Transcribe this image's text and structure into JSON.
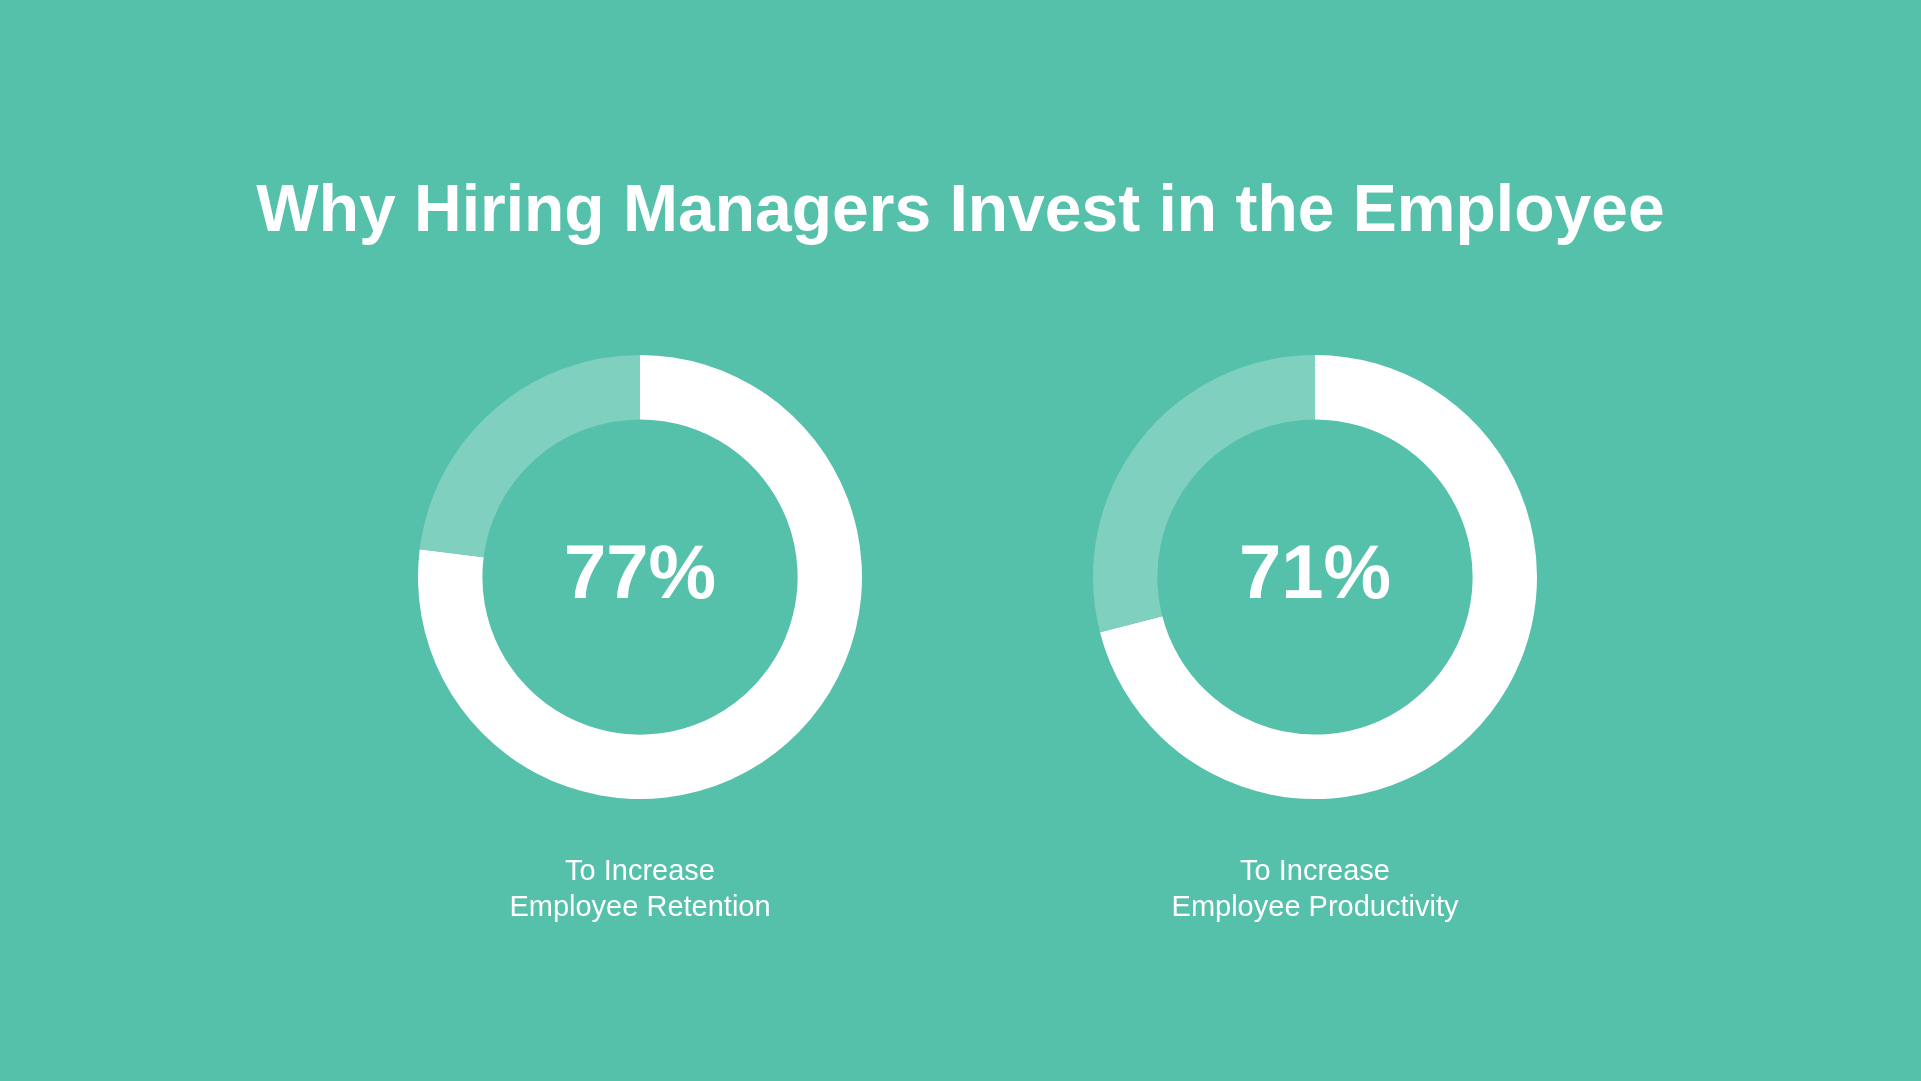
{
  "chart_data": [
    {
      "type": "donut",
      "title": "Why Hiring Managers Invest in the Employee",
      "xlabel": "To Increase\nEmployee Retention",
      "categories": [
        null,
        null
      ],
      "values": [
        77,
        23
      ],
      "colors": [
        "#ffffff",
        "#80d0bf"
      ],
      "value_labels": [
        "77%",
        null
      ]
    },
    {
      "type": "donut",
      "xlabel": "To Increase\nEmployee Productivity",
      "categories": [
        null,
        null
      ],
      "values": [
        71,
        29
      ],
      "colors": [
        "#ffffff",
        "#80d0bf"
      ],
      "value_labels": [
        "71%",
        null
      ]
    }
  ]
}
